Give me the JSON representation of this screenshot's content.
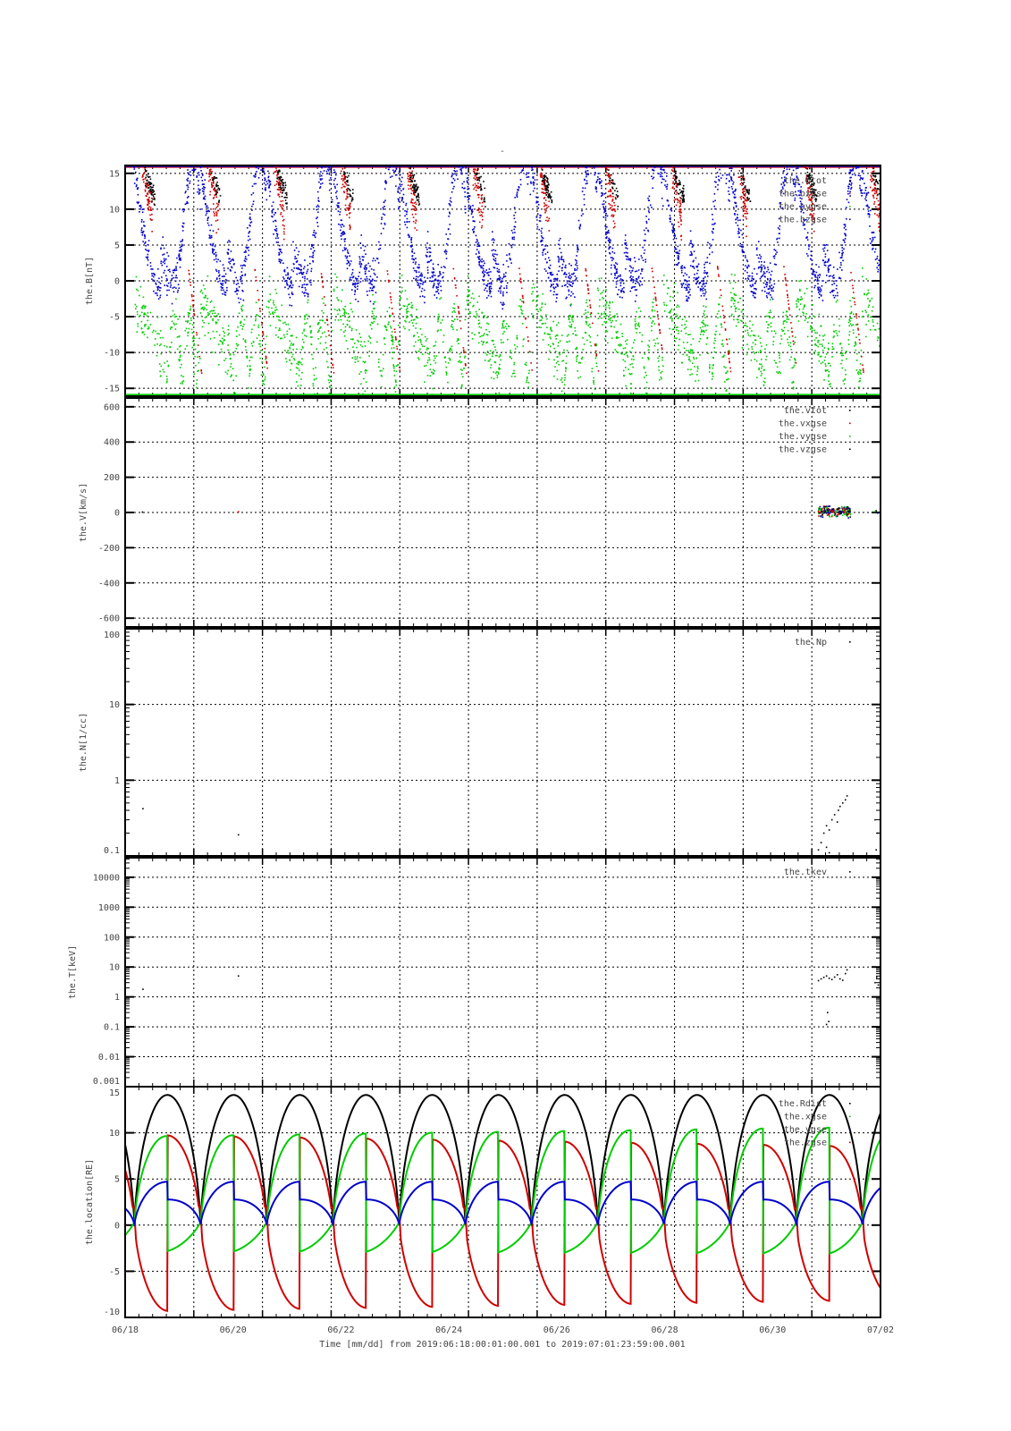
{
  "title": "-",
  "xaxis": {
    "label": "Time [mm/dd]  from 2019:06:18:00:01:00.001  to  2019:07:01:23:59:00.001",
    "range_days": [
      0,
      14
    ],
    "tick_labels": [
      "06/18",
      "06/20",
      "06/22",
      "06/24",
      "06/26",
      "06/28",
      "06/30",
      "07/02"
    ]
  },
  "chart_data": [
    {
      "type": "scatter",
      "id": "B",
      "ylabel": "the.B[nT]",
      "ylim": [
        -16.1,
        16.1
      ],
      "yticks": [
        15,
        10,
        5,
        0,
        -5,
        -10,
        -15
      ],
      "ytick_labels": [
        "15",
        "10",
        "5",
        "0",
        "-5",
        "-10",
        "-15"
      ],
      "legend": [
        "the.btot",
        "the.bxgse",
        "the.bygse",
        "the.bzgse"
      ],
      "legend_position": "top-right",
      "colors": {
        "the.btot": "#000000",
        "the.bxgse": "#d00000",
        "the.bygse": "#00cc00",
        "the.bzgse": "#0000cc"
      },
      "note": "dense scatter, saturated at +/-16 nT; per-orbit segments generated from listed perigee times",
      "perigee_days": [
        0.17,
        1.4,
        2.62,
        3.85,
        5.08,
        6.3,
        7.53,
        8.76,
        9.98,
        11.21,
        12.44,
        13.66
      ]
    },
    {
      "type": "scatter",
      "id": "V",
      "ylabel": "the.V[km/s]",
      "ylim": [
        -650,
        650
      ],
      "yticks": [
        600,
        400,
        200,
        0,
        -200,
        -400,
        -600
      ],
      "ytick_labels": [
        "600",
        "400",
        "200",
        "0",
        "-200",
        "-400",
        "-600"
      ],
      "legend": [
        "the.vtot",
        "the.vxgse",
        "the.vygse",
        "the.vzgse"
      ],
      "legend_position": "top-right",
      "points": {
        "cluster": {
          "t_range": [
            12.85,
            13.45
          ],
          "v_center": 5,
          "v_spread": 40,
          "count": 220
        },
        "extra": [
          [
            0.32,
            2
          ],
          [
            2.1,
            4
          ],
          [
            13.9,
            5
          ],
          [
            13.95,
            -4
          ],
          [
            13.92,
            10
          ]
        ]
      }
    },
    {
      "type": "scatter",
      "id": "N",
      "ylabel": "the.N[1/cc]",
      "yscale": "log",
      "ylim": [
        0.1,
        100
      ],
      "yticks": [
        100,
        10,
        1,
        0.1
      ],
      "ytick_labels": [
        "100",
        "10",
        "1",
        "0.1"
      ],
      "legend": [
        "the.Np"
      ],
      "legend_position": "top-right",
      "points": [
        [
          0.33,
          0.42
        ],
        [
          2.1,
          0.19
        ],
        [
          12.85,
          0.12
        ],
        [
          12.9,
          0.15
        ],
        [
          12.95,
          0.2
        ],
        [
          13.0,
          0.25
        ],
        [
          13.05,
          0.22
        ],
        [
          13.1,
          0.3
        ],
        [
          13.15,
          0.35
        ],
        [
          13.2,
          0.28
        ],
        [
          13.22,
          0.4
        ],
        [
          13.25,
          0.45
        ],
        [
          13.3,
          0.5
        ],
        [
          13.35,
          0.55
        ],
        [
          13.38,
          0.62
        ],
        [
          13.0,
          0.13
        ],
        [
          13.05,
          0.11
        ],
        [
          13.9,
          0.3
        ],
        [
          13.92,
          0.12
        ],
        [
          13.95,
          0.2
        ]
      ]
    },
    {
      "type": "scatter",
      "id": "T",
      "ylabel": "the.T[keV]",
      "yscale": "log",
      "ylim": [
        0.001,
        45000
      ],
      "yticks": [
        10000,
        1000,
        100,
        10,
        1,
        0.1,
        0.01,
        0.001
      ],
      "ytick_labels": [
        "10000",
        "1000",
        "100",
        "10",
        "1",
        "0.1",
        "0.01",
        "0.001"
      ],
      "legend": [
        "the.tkev"
      ],
      "legend_position": "top-right",
      "points": [
        [
          0.33,
          1.8
        ],
        [
          2.1,
          5
        ],
        [
          12.85,
          3.5
        ],
        [
          12.9,
          4
        ],
        [
          12.95,
          4.5
        ],
        [
          13.0,
          5
        ],
        [
          13.05,
          4.2
        ],
        [
          13.1,
          3.8
        ],
        [
          13.15,
          4.6
        ],
        [
          13.2,
          5.5
        ],
        [
          13.25,
          4
        ],
        [
          13.3,
          3.6
        ],
        [
          13.35,
          6
        ],
        [
          13.38,
          8
        ],
        [
          13.02,
          0.3
        ],
        [
          13.04,
          0.15
        ],
        [
          13.0,
          0.12
        ],
        [
          13.9,
          3
        ],
        [
          13.93,
          4.5
        ],
        [
          13.96,
          2.5
        ]
      ]
    },
    {
      "type": "line",
      "id": "location",
      "ylabel": "the.location[RE]",
      "ylim": [
        -10,
        15
      ],
      "yticks": [
        15,
        10,
        5,
        0,
        -5,
        -10
      ],
      "ytick_labels": [
        "15",
        "10",
        "5",
        "0",
        "-5",
        "-10"
      ],
      "legend": [
        "the.Rdist",
        "the.xgse",
        "the.ygse",
        "the.zgse"
      ],
      "legend_position": "top-right",
      "colors": {
        "the.Rdist": "#000000",
        "the.xgse": "#00cc00",
        "the.ygse": "#0000cc",
        "the.zgse": "#d00000"
      },
      "orbit": {
        "period_days": 1.227,
        "first_perigee_day": 0.17,
        "rdist_apogee": 14.1,
        "rdist_perigee": 0.5,
        "xgse_apogee_start": 10.2,
        "xgse_apogee_end": 11.3,
        "ygse_apogee": 4.7,
        "zgse_apogee_start": -9.8,
        "zgse_apogee_end": -8.5
      }
    }
  ]
}
